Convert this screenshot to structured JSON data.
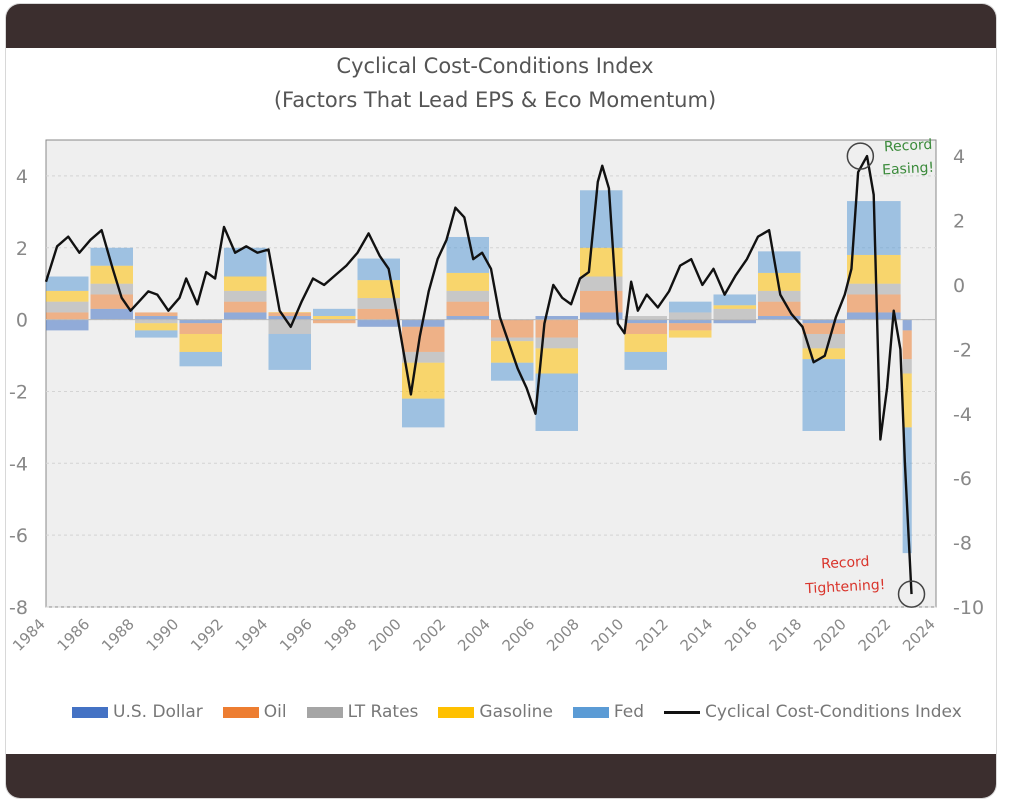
{
  "colors": {
    "usd": "#4472c4",
    "oil": "#ed7d31",
    "rates": "#a5a5a5",
    "gasoline": "#ffc000",
    "fed": "#5b9bd5",
    "index": "#111111",
    "easing_note": "#3a8a3a",
    "tightening_note": "#d9342b"
  },
  "chart_data": {
    "type": "bar",
    "title": "Cyclical Cost-Conditions Index",
    "subtitle": "(Factors That Lead EPS & Eco Momentum)",
    "xlabel": "",
    "ylabel": "",
    "xlim": [
      1984,
      2024
    ],
    "ylim": [
      -8,
      5
    ],
    "y2lim": [
      -10,
      4.5
    ],
    "y_ticks": [
      4,
      2,
      0,
      -2,
      -4,
      -6,
      -8
    ],
    "y2_ticks": [
      4,
      2,
      0,
      -2,
      -4,
      -6,
      -8,
      -10
    ],
    "x_ticks": [
      1984,
      1986,
      1988,
      1990,
      1992,
      1994,
      1996,
      1998,
      2000,
      2002,
      2004,
      2006,
      2008,
      2010,
      2012,
      2014,
      2016,
      2018,
      2020,
      2022,
      2024
    ],
    "legend": [
      "U.S. Dollar",
      "Oil",
      "LT Rates",
      "Gasoline",
      "Fed",
      "Cyclical Cost-Conditions Index"
    ],
    "legend_position": "bottom",
    "stacked_series": [
      {
        "name": "U.S. Dollar",
        "color_key": "usd",
        "x": [
          1984,
          1986,
          1988,
          1990,
          1992,
          1994,
          1996,
          1998,
          2000,
          2002,
          2004,
          2006,
          2008,
          2010,
          2012,
          2014,
          2016,
          2018,
          2020,
          2022.5
        ],
        "values": [
          -0.3,
          0.3,
          0.1,
          -0.1,
          0.2,
          0.1,
          0.0,
          -0.2,
          -0.2,
          0.1,
          0.0,
          0.1,
          0.2,
          -0.1,
          -0.1,
          -0.1,
          0.1,
          -0.1,
          0.2,
          -0.3
        ]
      },
      {
        "name": "Oil",
        "color_key": "oil",
        "x": [
          1984,
          1986,
          1988,
          1990,
          1992,
          1994,
          1996,
          1998,
          2000,
          2002,
          2004,
          2006,
          2008,
          2010,
          2012,
          2014,
          2016,
          2018,
          2020,
          2022.5
        ],
        "values": [
          0.2,
          0.4,
          0.1,
          -0.3,
          0.3,
          0.1,
          -0.1,
          0.3,
          -0.7,
          0.4,
          -0.5,
          -0.5,
          0.6,
          -0.3,
          -0.2,
          0.0,
          0.4,
          -0.3,
          0.5,
          -0.8
        ]
      },
      {
        "name": "LT Rates",
        "color_key": "rates",
        "x": [
          1984,
          1986,
          1988,
          1990,
          1992,
          1994,
          1996,
          1998,
          2000,
          2002,
          2004,
          2006,
          2008,
          2010,
          2012,
          2014,
          2016,
          2018,
          2020,
          2022.5
        ],
        "values": [
          0.3,
          0.3,
          -0.1,
          0.0,
          0.3,
          -0.4,
          0.0,
          0.3,
          -0.3,
          0.3,
          -0.1,
          -0.3,
          0.4,
          0.1,
          0.2,
          0.3,
          0.3,
          -0.4,
          0.3,
          -0.4
        ]
      },
      {
        "name": "Gasoline",
        "color_key": "gasoline",
        "x": [
          1984,
          1986,
          1988,
          1990,
          1992,
          1994,
          1996,
          1998,
          2000,
          2002,
          2004,
          2006,
          2008,
          2010,
          2012,
          2014,
          2016,
          2018,
          2020,
          2022.5
        ],
        "values": [
          0.3,
          0.5,
          -0.2,
          -0.5,
          0.4,
          0.0,
          0.1,
          0.5,
          -1.0,
          0.5,
          -0.6,
          -0.7,
          0.8,
          -0.5,
          -0.2,
          0.1,
          0.5,
          -0.3,
          0.8,
          -1.5
        ]
      },
      {
        "name": "Fed",
        "color_key": "fed",
        "x": [
          1984,
          1986,
          1988,
          1990,
          1992,
          1994,
          1996,
          1998,
          2000,
          2002,
          2004,
          2006,
          2008,
          2010,
          2012,
          2014,
          2016,
          2018,
          2020,
          2022.5
        ],
        "values": [
          0.4,
          0.5,
          -0.2,
          -0.4,
          0.8,
          -1.0,
          0.2,
          0.6,
          -0.8,
          1.0,
          -0.5,
          -1.6,
          1.6,
          -0.5,
          0.3,
          0.3,
          0.6,
          -2.0,
          1.5,
          -3.5
        ]
      }
    ],
    "line_series": {
      "name": "Cyclical Cost-Conditions Index",
      "axis": "right",
      "x": [
        1984.0,
        1984.5,
        1985.0,
        1985.5,
        1986.0,
        1986.5,
        1987.0,
        1987.4,
        1987.8,
        1988.2,
        1988.6,
        1989.0,
        1989.5,
        1990.0,
        1990.3,
        1990.8,
        1991.2,
        1991.6,
        1992.0,
        1992.5,
        1993.0,
        1993.5,
        1994.0,
        1994.5,
        1995.0,
        1995.5,
        1996.0,
        1996.5,
        1997.0,
        1997.5,
        1998.0,
        1998.5,
        1999.0,
        1999.4,
        1999.8,
        2000.1,
        2000.4,
        2000.8,
        2001.2,
        2001.6,
        2002.0,
        2002.4,
        2002.8,
        2003.2,
        2003.6,
        2004.0,
        2004.4,
        2004.8,
        2005.2,
        2005.6,
        2006.0,
        2006.4,
        2006.8,
        2007.2,
        2007.6,
        2008.0,
        2008.4,
        2008.8,
        2009.0,
        2009.3,
        2009.7,
        2010.0,
        2010.3,
        2010.6,
        2011.0,
        2011.5,
        2012.0,
        2012.5,
        2013.0,
        2013.5,
        2014.0,
        2014.5,
        2015.0,
        2015.5,
        2016.0,
        2016.5,
        2017.0,
        2017.5,
        2018.0,
        2018.5,
        2019.0,
        2019.5,
        2019.9,
        2020.2,
        2020.5,
        2020.9,
        2021.2,
        2021.5,
        2021.8,
        2022.1,
        2022.4,
        2022.6,
        2022.9
      ],
      "values": [
        0.1,
        1.2,
        1.5,
        1.0,
        1.4,
        1.7,
        0.5,
        -0.4,
        -0.8,
        -0.5,
        -0.2,
        -0.3,
        -0.8,
        -0.4,
        0.2,
        -0.6,
        0.4,
        0.2,
        1.8,
        1.0,
        1.2,
        1.0,
        1.1,
        -0.8,
        -1.3,
        -0.5,
        0.2,
        0.0,
        0.3,
        0.6,
        1.0,
        1.6,
        0.9,
        0.5,
        -1.0,
        -2.2,
        -3.4,
        -1.6,
        -0.2,
        0.8,
        1.4,
        2.4,
        2.1,
        0.8,
        1.0,
        0.5,
        -1.0,
        -1.8,
        -2.6,
        -3.2,
        -4.0,
        -1.2,
        0.0,
        -0.4,
        -0.6,
        0.2,
        0.4,
        3.2,
        3.7,
        3.0,
        -1.2,
        -1.5,
        0.1,
        -0.8,
        -0.3,
        -0.7,
        -0.2,
        0.6,
        0.8,
        0.0,
        0.5,
        -0.3,
        0.3,
        0.8,
        1.5,
        1.7,
        -0.3,
        -0.9,
        -1.3,
        -2.4,
        -2.2,
        -1.0,
        -0.3,
        0.5,
        3.5,
        4.0,
        2.8,
        -4.8,
        -3.2,
        -0.8,
        -2.0,
        -5.5,
        -9.6
      ]
    },
    "annotations": [
      {
        "text_line1": "Record",
        "text_line2": "Easing!",
        "x": 2020.6,
        "y": 4.0,
        "color_key": "easing_note"
      },
      {
        "text_line1": "Record",
        "text_line2": "Tightening!",
        "x": 2022.9,
        "y": -9.6,
        "color_key": "tightening_note"
      }
    ]
  }
}
